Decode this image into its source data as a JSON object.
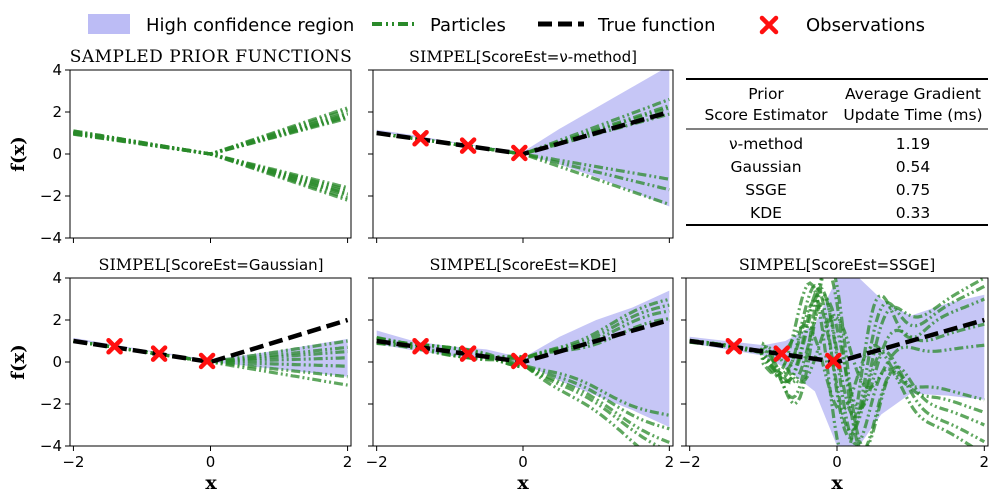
{
  "legend": {
    "band_label": "High confidence region",
    "particles_label": "Particles",
    "truth_label": "True function",
    "obs_label": "Observations"
  },
  "colors": {
    "band": "#bcbcf5",
    "particles": "#2a8a2a",
    "truth": "#000000",
    "observations": "#ff1010"
  },
  "table": {
    "col1_header_line1": "Prior",
    "col1_header_line2": "Score Estimator",
    "col2_header_line1": "Average Gradient",
    "col2_header_line2": "Update Time (ms)",
    "rows": [
      {
        "method": "ν-method",
        "time": "1.19"
      },
      {
        "method": "Gaussian",
        "time": "0.54"
      },
      {
        "method": "SSGE",
        "time": "0.75"
      },
      {
        "method": "KDE",
        "time": "0.33"
      }
    ]
  },
  "chart_data": [
    {
      "id": "prior",
      "type": "line",
      "title_display": "SAMPLED PRIOR FUNCTIONS",
      "xlabel": "",
      "ylabel": "f(x)",
      "xlim": [
        -2.05,
        2.05
      ],
      "ylim": [
        -4,
        4
      ],
      "xticks": [
        -2,
        0,
        2
      ],
      "yticks": [
        -4,
        -2,
        0,
        2,
        4
      ],
      "show_xtick_labels": false,
      "show_ytick_labels": true,
      "band": null,
      "truth": false,
      "observations": [],
      "particle_style": "kink",
      "particle_pairs": [
        [
          -0.55,
          0.95
        ],
        [
          -0.5,
          0.9
        ],
        [
          -0.52,
          1.05
        ],
        [
          -0.48,
          0.85
        ],
        [
          -0.5,
          0.98
        ],
        [
          -0.53,
          1.1
        ],
        [
          -0.47,
          0.88
        ],
        [
          -0.5,
          -0.9
        ],
        [
          -0.55,
          -1.05
        ],
        [
          -0.52,
          -0.85
        ],
        [
          -0.48,
          -0.98
        ],
        [
          -0.5,
          -1.1
        ],
        [
          -0.53,
          -0.95
        ],
        [
          -0.5,
          -0.8
        ]
      ]
    },
    {
      "id": "nu",
      "type": "line",
      "title_prefix": "SIMPEL",
      "title_suffix": "[ScoreEst=ν-method]",
      "xlabel": "",
      "ylabel": "",
      "xlim": [
        -2.05,
        2.05
      ],
      "ylim": [
        -4,
        4
      ],
      "xticks": [
        -2,
        0,
        2
      ],
      "yticks": [
        -4,
        -2,
        0,
        2,
        4
      ],
      "show_xtick_labels": false,
      "show_ytick_labels": false,
      "band": {
        "x": [
          -2,
          -1.5,
          -1,
          -0.5,
          0,
          0.5,
          1,
          1.5,
          2
        ],
        "lower": [
          1.05,
          0.8,
          0.55,
          0.3,
          0.0,
          -0.5,
          -1.1,
          -1.8,
          -2.5
        ],
        "upper": [
          1.15,
          0.9,
          0.6,
          0.35,
          0.1,
          1.2,
          2.2,
          3.2,
          4.2
        ]
      },
      "truth": true,
      "observations": [
        {
          "x": -1.4,
          "y": 0.75
        },
        {
          "x": -0.75,
          "y": 0.4
        },
        {
          "x": -0.05,
          "y": 0.05
        }
      ],
      "particle_style": "kink",
      "particle_pairs": [
        [
          -0.5,
          1.1
        ],
        [
          -0.5,
          1.3
        ],
        [
          -0.5,
          0.95
        ],
        [
          -0.5,
          1.15
        ],
        [
          -0.5,
          -0.85
        ],
        [
          -0.5,
          -1.2
        ],
        [
          -0.5,
          -0.6
        ]
      ]
    },
    {
      "id": "table",
      "type": "table"
    },
    {
      "id": "gauss",
      "type": "line",
      "title_prefix": "SIMPEL",
      "title_suffix": "[ScoreEst=Gaussian]",
      "xlabel": "x",
      "ylabel": "f(x)",
      "xlim": [
        -2.05,
        2.05
      ],
      "ylim": [
        -4,
        4
      ],
      "xticks": [
        -2,
        0,
        2
      ],
      "yticks": [
        -4,
        -2,
        0,
        2,
        4
      ],
      "show_xtick_labels": true,
      "show_ytick_labels": true,
      "band": {
        "x": [
          -2,
          -1,
          0,
          1,
          2
        ],
        "lower": [
          1.05,
          0.55,
          0.0,
          -0.35,
          -0.7
        ],
        "upper": [
          1.15,
          0.6,
          0.1,
          0.55,
          1.1
        ]
      },
      "truth": true,
      "observations": [
        {
          "x": -1.4,
          "y": 0.75
        },
        {
          "x": -0.75,
          "y": 0.4
        },
        {
          "x": -0.05,
          "y": 0.05
        }
      ],
      "particle_style": "kink",
      "particle_pairs": [
        [
          -0.5,
          0.25
        ],
        [
          -0.5,
          0.5
        ],
        [
          -0.5,
          0.1
        ],
        [
          -0.5,
          -0.1
        ],
        [
          -0.5,
          -0.35
        ],
        [
          -0.5,
          -0.55
        ],
        [
          -0.5,
          0.35
        ]
      ]
    },
    {
      "id": "kde",
      "type": "line",
      "title_prefix": "SIMPEL",
      "title_suffix": "[ScoreEst=KDE]",
      "xlabel": "x",
      "ylabel": "",
      "xlim": [
        -2.05,
        2.05
      ],
      "ylim": [
        -4,
        4
      ],
      "xticks": [
        -2,
        0,
        2
      ],
      "yticks": [
        -4,
        -2,
        0,
        2,
        4
      ],
      "show_xtick_labels": true,
      "show_ytick_labels": false,
      "band": {
        "x": [
          -2,
          -1.5,
          -1,
          -0.5,
          0,
          0.5,
          1,
          1.5,
          2
        ],
        "lower": [
          0.85,
          0.55,
          0.3,
          0.15,
          -0.05,
          -0.9,
          -1.6,
          -2.3,
          -3.1
        ],
        "upper": [
          1.5,
          1.0,
          0.75,
          0.6,
          0.2,
          1.2,
          2.0,
          2.6,
          3.4
        ]
      },
      "truth": true,
      "observations": [
        {
          "x": -1.4,
          "y": 0.75
        },
        {
          "x": -0.75,
          "y": 0.4
        },
        {
          "x": -0.05,
          "y": 0.05
        }
      ],
      "particle_style": "wavy",
      "particle_pairs": [
        [
          0.3,
          1.2
        ],
        [
          0.2,
          1.5
        ],
        [
          0.25,
          1.0
        ],
        [
          0.15,
          1.35
        ],
        [
          -0.35,
          -1.6
        ],
        [
          -0.4,
          -2.1
        ],
        [
          -0.3,
          -1.9
        ],
        [
          -0.45,
          -2.5
        ],
        [
          -0.3,
          -1.3
        ]
      ]
    },
    {
      "id": "ssge",
      "type": "line",
      "title_prefix": "SIMPEL",
      "title_suffix": "[ScoreEst=SSGE]",
      "xlabel": "x",
      "ylabel": "",
      "xlim": [
        -2.05,
        2.05
      ],
      "ylim": [
        -4,
        4
      ],
      "xticks": [
        -2,
        0,
        2
      ],
      "yticks": [
        -4,
        -2,
        0,
        2,
        4
      ],
      "show_xtick_labels": true,
      "show_ytick_labels": false,
      "band": {
        "x": [
          -2,
          -1.5,
          -1,
          -0.7,
          -0.3,
          0,
          0.3,
          0.6,
          1,
          1.5,
          2
        ],
        "lower": [
          0.9,
          0.6,
          0.3,
          -0.3,
          -1.4,
          -4.0,
          -4.0,
          -2.5,
          -1.5,
          -1.6,
          -1.8
        ],
        "upper": [
          1.2,
          1.0,
          0.8,
          1.0,
          1.8,
          4.0,
          4.0,
          3.0,
          2.2,
          2.8,
          3.2
        ]
      },
      "truth": true,
      "observations": [
        {
          "x": -1.4,
          "y": 0.75
        },
        {
          "x": -0.75,
          "y": 0.4
        },
        {
          "x": -0.05,
          "y": 0.05
        }
      ],
      "particle_style": "wild",
      "particle_pairs": [
        [
          3.5,
          1.8
        ],
        [
          -3.8,
          -1.9
        ],
        [
          2.6,
          0.9
        ],
        [
          -2.8,
          -1.2
        ],
        [
          4.0,
          1.5
        ],
        [
          -3.2,
          -2.2
        ],
        [
          1.8,
          0.4
        ],
        [
          -1.9,
          -0.9
        ],
        [
          3.0,
          2.0
        ],
        [
          -4.0,
          -1.5
        ]
      ]
    }
  ]
}
